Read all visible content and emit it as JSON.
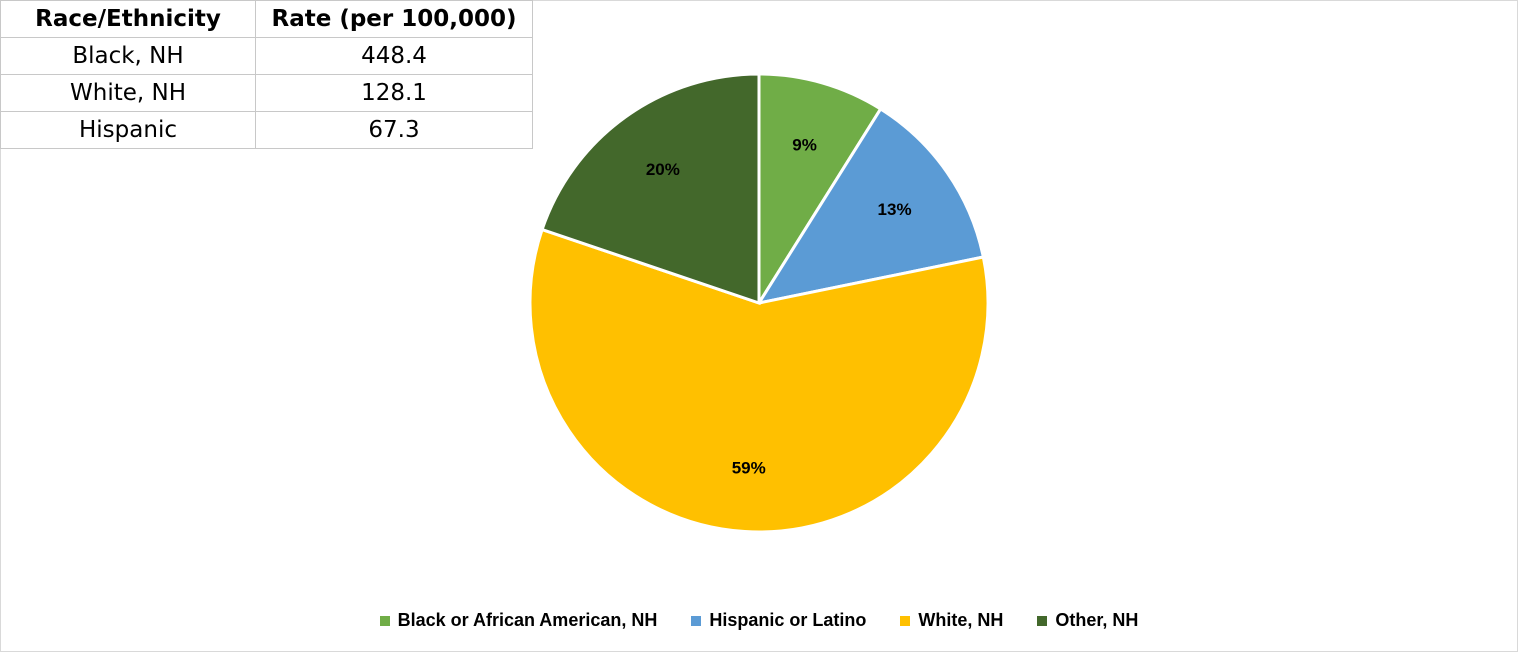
{
  "table": {
    "headers": [
      "Race/Ethnicity",
      "Rate (per 100,000)"
    ],
    "rows": [
      [
        "Black, NH",
        "448.4"
      ],
      [
        "White, NH",
        "128.1"
      ],
      [
        "Hispanic",
        "67.3"
      ]
    ]
  },
  "chart_data": {
    "type": "pie",
    "title": "",
    "categories": [
      "Black or African American, NH",
      "Hispanic or Latino",
      "White, NH",
      "Other, NH"
    ],
    "values": [
      9,
      13,
      59,
      20
    ],
    "data_labels": [
      "9%",
      "13%",
      "59%",
      "20%"
    ],
    "colors": [
      "#70ad47",
      "#5b9bd5",
      "#ffc000",
      "#43682b"
    ],
    "start_angle": "12 o'clock, clockwise",
    "legend_position": "bottom"
  }
}
